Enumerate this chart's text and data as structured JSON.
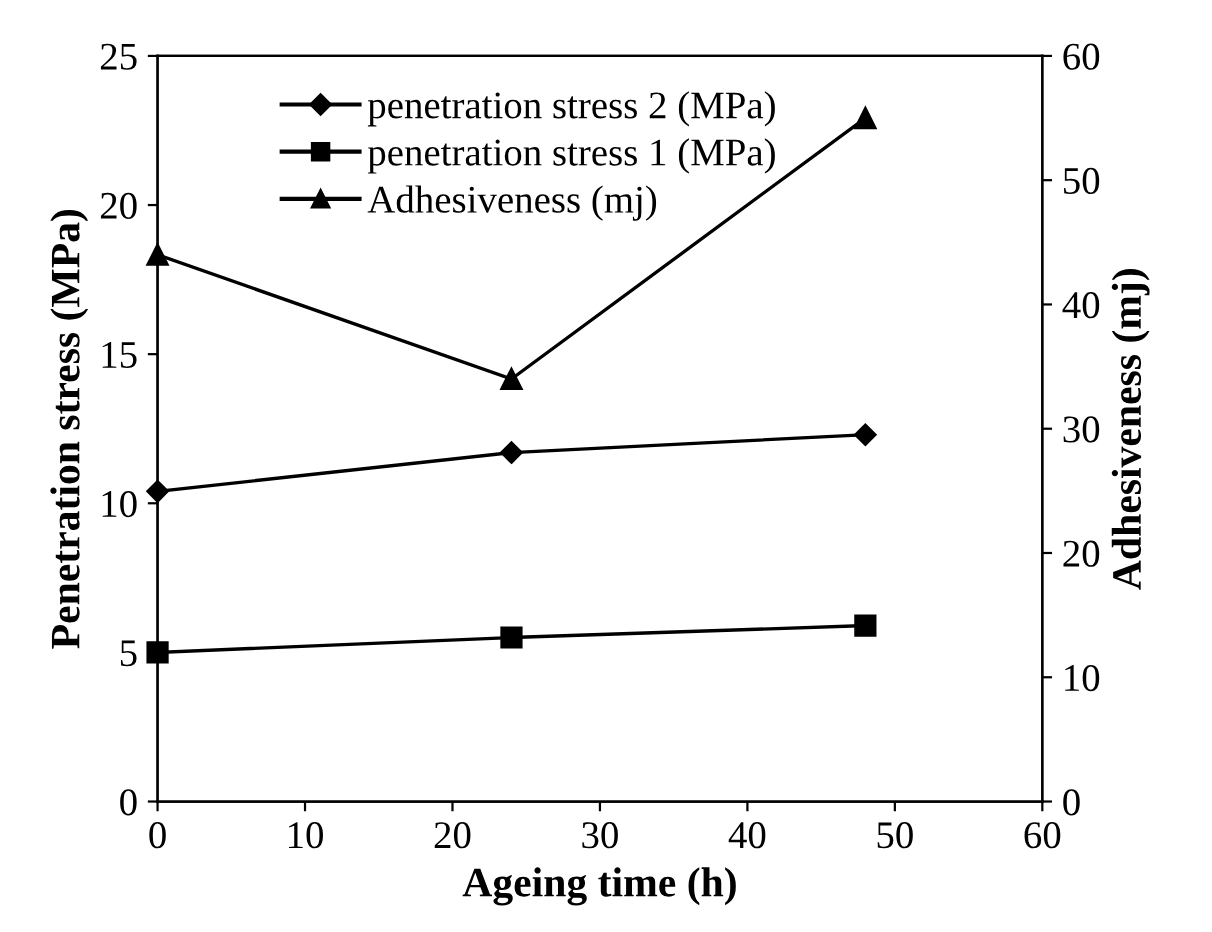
{
  "chart_data": {
    "type": "line",
    "xlabel": "Ageing time (h)",
    "ylabel": "Penetration stress (MPa)",
    "y2label": "Adhesiveness (mj)",
    "x": [
      0,
      24,
      48
    ],
    "series": [
      {
        "name": "penetration stress 2 (MPa)",
        "color": "#000000",
        "marker": "diamond",
        "values": [
          10.4,
          11.7,
          12.3
        ]
      },
      {
        "name": "penetration stress 1 (MPa)",
        "color": "#000000",
        "marker": "square",
        "values": [
          5.0,
          5.5,
          5.9
        ]
      },
      {
        "name": "Adhesiveness (mj)",
        "color": "#000000",
        "marker": "triangle",
        "axis": "y2",
        "values": [
          44,
          34,
          55
        ]
      }
    ],
    "xlim": [
      0,
      60
    ],
    "xticks": [
      0,
      10,
      20,
      30,
      40,
      50,
      60
    ],
    "ylim": [
      0,
      25
    ],
    "yticks": [
      0,
      5,
      10,
      15,
      20,
      25
    ],
    "y2lim": [
      0,
      60
    ],
    "y2ticks": [
      0,
      10,
      20,
      30,
      40,
      50,
      60
    ],
    "legend": "top",
    "grid": false,
    "line_style": "solid"
  }
}
